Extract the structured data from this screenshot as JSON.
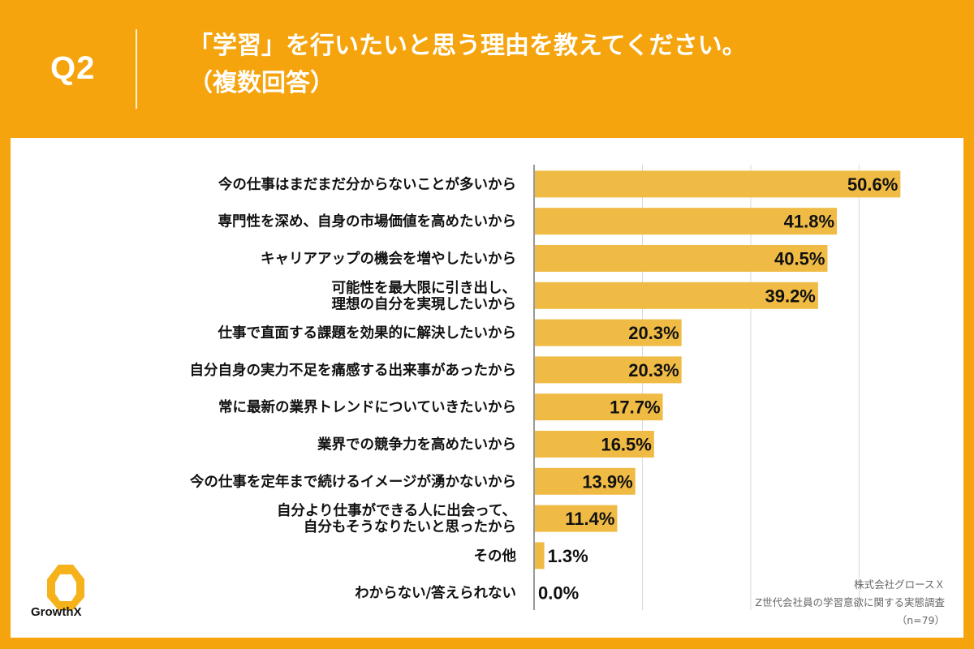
{
  "header": {
    "question_label": "Q2",
    "title_line1": "「学習」を行いたいと思う理由を教えてください。",
    "title_line2": "（複数回答）"
  },
  "colors": {
    "background": "#F5A40D",
    "bar": "#F0BB45",
    "grid": "#D8D8D8",
    "text": "#111111"
  },
  "chart_data": {
    "type": "bar",
    "orientation": "horizontal",
    "title": "「学習」を行いたいと思う理由を教えてください。（複数回答）",
    "categories": [
      [
        "今の仕事はまだまだ分からないことが多いから"
      ],
      [
        "専門性を深め、自身の市場価値を高めたいから"
      ],
      [
        "キャリアアップの機会を増やしたいから"
      ],
      [
        "可能性を最大限に引き出し、",
        "理想の自分を実現したいから"
      ],
      [
        "仕事で直面する課題を効果的に解決したいから"
      ],
      [
        "自分自身の実力不足を痛感する出来事があったから"
      ],
      [
        "常に最新の業界トレンドについていきたいから"
      ],
      [
        "業界での競争力を高めたいから"
      ],
      [
        "今の仕事を定年まで続けるイメージが湧かないから"
      ],
      [
        "自分より仕事ができる人に出会って、",
        "自分もそうなりたいと思ったから"
      ],
      [
        "その他"
      ],
      [
        "わからない/答えられない"
      ]
    ],
    "values": [
      50.6,
      41.8,
      40.5,
      39.2,
      20.3,
      20.3,
      17.7,
      16.5,
      13.9,
      11.4,
      1.3,
      0.0
    ],
    "value_labels": [
      "50.6%",
      "41.8%",
      "40.5%",
      "39.2%",
      "20.3%",
      "20.3%",
      "17.7%",
      "16.5%",
      "13.9%",
      "11.4%",
      "1.3%",
      "0.0%"
    ],
    "xlim": [
      0,
      60
    ],
    "grid_step": 15,
    "grid": true,
    "xlabel": "",
    "ylabel": ""
  },
  "brand": {
    "logo_text": "GrowthX"
  },
  "source": {
    "company": "株式会社グロースＸ",
    "survey": "Z世代会社員の学習意欲に関する実態調査",
    "sample": "（n=79）"
  }
}
